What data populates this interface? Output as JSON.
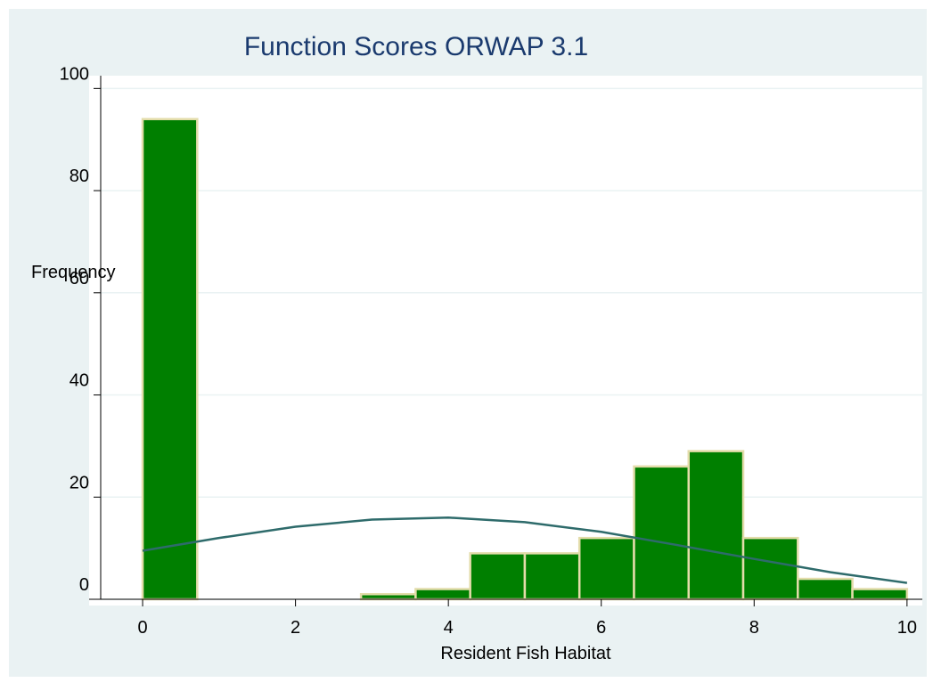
{
  "chart_data": {
    "type": "histogram",
    "title": "Function Scores   ORWAP 3.1",
    "xlabel": "Resident Fish Habitat",
    "ylabel": "Frequency",
    "bins": [
      0,
      0.7143,
      1.4286,
      2.1429,
      2.8571,
      3.5714,
      4.2857,
      5,
      5.7143,
      6.4286,
      7.1429,
      7.8571,
      8.5714,
      9.2857,
      10
    ],
    "values": [
      94,
      0,
      0,
      0,
      1,
      2,
      9,
      9,
      12,
      26,
      29,
      12,
      4,
      2
    ],
    "color": "#007f00",
    "edge_color": "#e3dcaa",
    "curve": {
      "x": [
        0,
        1,
        2,
        3,
        4,
        5,
        6,
        7,
        8,
        9,
        10
      ],
      "values": [
        9.5,
        12,
        14.2,
        15.6,
        16,
        15.1,
        13.2,
        10.6,
        7.9,
        5.3,
        3.2
      ],
      "color": "#2e6b6b"
    },
    "xlim": [
      -0.7,
      10.2
    ],
    "ylim": [
      0,
      102.5
    ],
    "xticks": [
      0,
      2,
      4,
      6,
      8,
      10
    ],
    "yticks": [
      0,
      20,
      40,
      60,
      80,
      100
    ],
    "grid": true
  }
}
